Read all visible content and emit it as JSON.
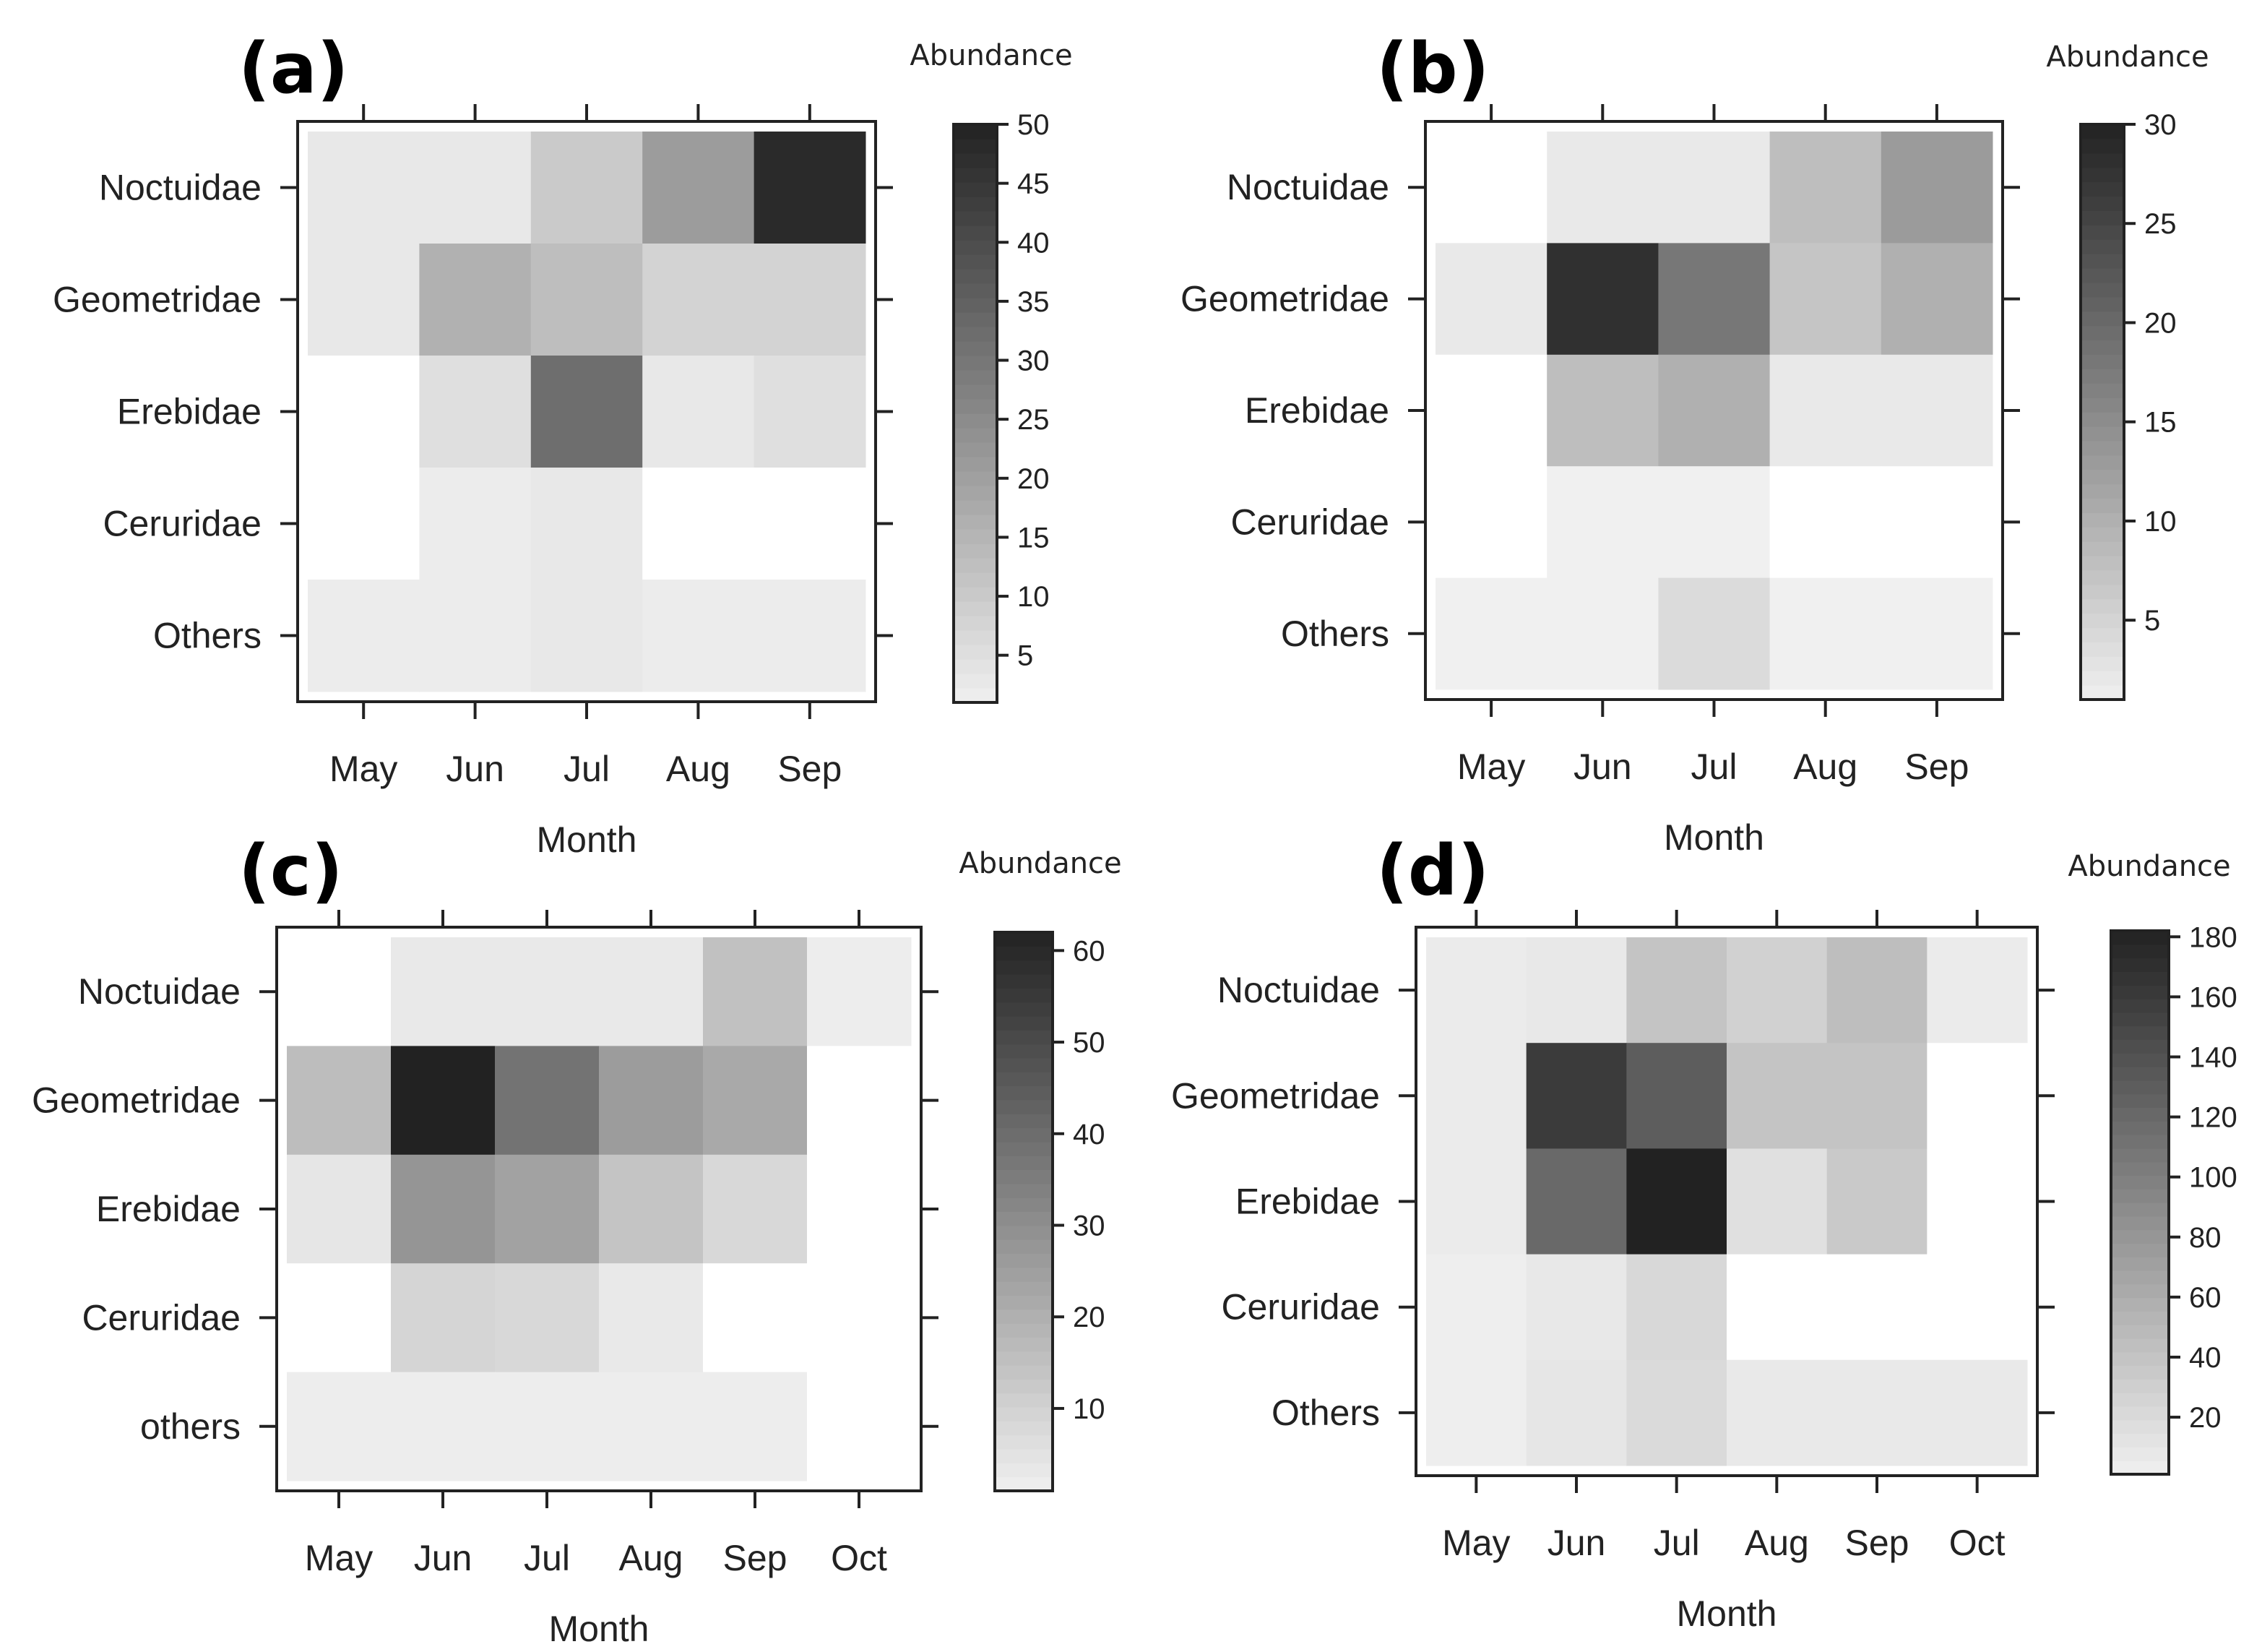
{
  "chart_data": [
    {
      "type": "heatmap",
      "panel_label": "(a)",
      "xlabel": "Month",
      "colorbar_title": "Abundance",
      "categories_x": [
        "May",
        "Jun",
        "Jul",
        "Aug",
        "Sep"
      ],
      "categories_y": [
        "Noctuidae",
        "Geometridae",
        "Erebidae",
        "Ceruridae",
        "Others"
      ],
      "values": [
        [
          3,
          3,
          10,
          21,
          48
        ],
        [
          3,
          16,
          13,
          8,
          8
        ],
        [
          0,
          5,
          32,
          3,
          5
        ],
        [
          0,
          2,
          3,
          0,
          0
        ],
        [
          2,
          2,
          3,
          2,
          2
        ]
      ],
      "color_range": [
        1,
        50
      ],
      "colorbar_ticks": [
        5,
        10,
        15,
        20,
        25,
        30,
        35,
        40,
        45,
        50
      ]
    },
    {
      "type": "heatmap",
      "panel_label": "(b)",
      "xlabel": "Month",
      "colorbar_title": "Abundance",
      "categories_x": [
        "May",
        "Jun",
        "Jul",
        "Aug",
        "Sep"
      ],
      "categories_y": [
        "Noctuidae",
        "Geometridae",
        "Erebidae",
        "Ceruridae",
        "Others"
      ],
      "values": [
        [
          0,
          2,
          2,
          8,
          13
        ],
        [
          2,
          28,
          18,
          7,
          10
        ],
        [
          0,
          8,
          10,
          2,
          2
        ],
        [
          0,
          1,
          1,
          0,
          0
        ],
        [
          1,
          1,
          4,
          1,
          1
        ]
      ],
      "color_range": [
        1,
        30
      ],
      "colorbar_ticks": [
        5,
        10,
        15,
        20,
        25,
        30
      ]
    },
    {
      "type": "heatmap",
      "panel_label": "(c)",
      "xlabel": "Month",
      "colorbar_title": "Abundance",
      "categories_x": [
        "May",
        "Jun",
        "Jul",
        "Aug",
        "Sep",
        "Oct"
      ],
      "categories_y": [
        "Noctuidae",
        "Geometridae",
        "Erebidae",
        "Ceruridae",
        "others"
      ],
      "values": [
        [
          0,
          3,
          3,
          3,
          15,
          2
        ],
        [
          16,
          62,
          38,
          26,
          22,
          0
        ],
        [
          4,
          28,
          24,
          14,
          8,
          0
        ],
        [
          0,
          9,
          8,
          3,
          0,
          0
        ],
        [
          2,
          2,
          2,
          2,
          2,
          0
        ]
      ],
      "color_range": [
        1,
        62
      ],
      "colorbar_ticks": [
        10,
        20,
        30,
        40,
        50,
        60
      ]
    },
    {
      "type": "heatmap",
      "panel_label": "(d)",
      "xlabel": "Month",
      "colorbar_title": "Abundance",
      "categories_x": [
        "May",
        "Jun",
        "Jul",
        "Aug",
        "Sep",
        "Oct"
      ],
      "categories_y": [
        "Noctuidae",
        "Geometridae",
        "Erebidae",
        "Ceruridae",
        "Others"
      ],
      "values": [
        [
          5,
          8,
          40,
          28,
          45,
          5
        ],
        [
          5,
          160,
          130,
          40,
          40,
          0
        ],
        [
          5,
          120,
          182,
          15,
          35,
          0
        ],
        [
          3,
          8,
          22,
          0,
          0,
          0
        ],
        [
          3,
          10,
          20,
          7,
          7,
          7
        ]
      ],
      "color_range": [
        1,
        182
      ],
      "colorbar_ticks": [
        20,
        40,
        60,
        80,
        100,
        120,
        140,
        160,
        180
      ]
    }
  ]
}
